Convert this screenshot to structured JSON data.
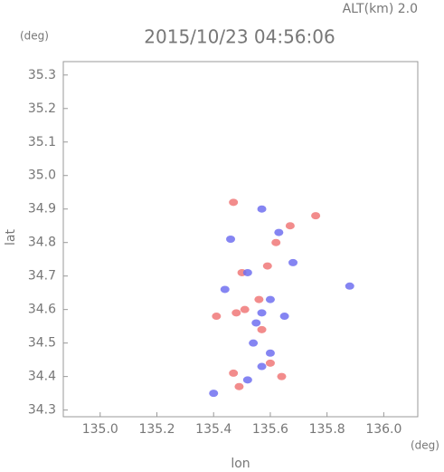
{
  "chart_data": {
    "type": "scatter",
    "title": "2015/10/23 04:56:06",
    "subtitle": "ALT(km) 2.0",
    "x_label": "lon",
    "y_label": "lat",
    "x_unit": "(deg)",
    "y_unit": "(deg)",
    "xlim": [
      134.87,
      136.12
    ],
    "ylim": [
      34.28,
      35.34
    ],
    "xticks": [
      {
        "value": 135,
        "label": "135.0"
      },
      135.2,
      135.4,
      135.6,
      135.8,
      {
        "value": 136,
        "label": "136.0"
      }
    ],
    "yticks": [
      34.3,
      34.4,
      34.5,
      34.6,
      34.7,
      34.8,
      34.9,
      {
        "value": 35,
        "label": "35.0"
      },
      35.1,
      35.2,
      35.3
    ],
    "grid": false,
    "series": [
      {
        "color": "#f07878",
        "x": [
          135.47,
          135.5,
          135.51,
          135.48,
          135.57,
          135.47,
          135.6,
          135.49,
          135.64,
          135.76,
          135.41,
          135.56,
          135.62,
          135.59,
          135.67
        ],
        "values": [
          34.92,
          34.71,
          34.6,
          34.59,
          34.54,
          34.41,
          34.44,
          34.37,
          34.4,
          34.88,
          34.58,
          34.63,
          34.8,
          34.73,
          34.85
        ]
      },
      {
        "color": "#7070f0",
        "x": [
          135.57,
          135.6,
          135.54,
          135.52,
          135.57,
          135.6,
          135.4,
          135.63,
          135.68,
          135.88,
          135.46,
          135.44,
          135.52,
          135.55,
          135.65,
          135.57
        ],
        "values": [
          34.59,
          34.63,
          34.5,
          34.71,
          34.43,
          34.47,
          34.35,
          34.83,
          34.74,
          34.67,
          34.81,
          34.66,
          34.39,
          34.56,
          34.58,
          34.9
        ]
      }
    ]
  }
}
